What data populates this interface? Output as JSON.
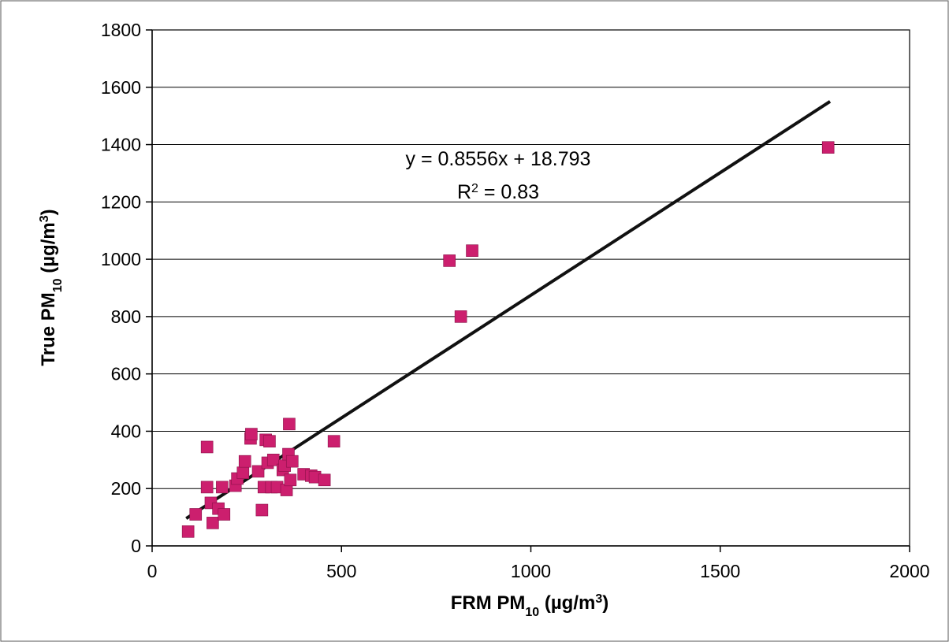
{
  "chart_data": {
    "type": "scatter",
    "xlabel": {
      "main": "FRM PM",
      "sub": "10",
      "unit_pre": " (µg/m",
      "unit_sup": "3",
      "unit_post": ")"
    },
    "ylabel": {
      "main": "True PM",
      "sub": "10",
      "unit_pre": " (µg/m",
      "unit_sup": "3",
      "unit_post": ")"
    },
    "xlim": [
      0,
      2000
    ],
    "ylim": [
      0,
      1800
    ],
    "xticks": [
      0,
      500,
      1000,
      1500,
      2000
    ],
    "yticks": [
      0,
      200,
      400,
      600,
      800,
      1000,
      1200,
      1400,
      1600,
      1800
    ],
    "grid": "horizontal",
    "marker_color": "#cc1f6e",
    "series": [
      {
        "points": [
          {
            "x": 95,
            "y": 50
          },
          {
            "x": 115,
            "y": 110
          },
          {
            "x": 145,
            "y": 345
          },
          {
            "x": 145,
            "y": 205
          },
          {
            "x": 155,
            "y": 150
          },
          {
            "x": 160,
            "y": 80
          },
          {
            "x": 175,
            "y": 130
          },
          {
            "x": 185,
            "y": 205
          },
          {
            "x": 190,
            "y": 110
          },
          {
            "x": 220,
            "y": 210
          },
          {
            "x": 225,
            "y": 235
          },
          {
            "x": 240,
            "y": 255
          },
          {
            "x": 245,
            "y": 295
          },
          {
            "x": 260,
            "y": 375
          },
          {
            "x": 262,
            "y": 390
          },
          {
            "x": 280,
            "y": 260
          },
          {
            "x": 290,
            "y": 125
          },
          {
            "x": 295,
            "y": 205
          },
          {
            "x": 300,
            "y": 370
          },
          {
            "x": 305,
            "y": 290
          },
          {
            "x": 310,
            "y": 365
          },
          {
            "x": 315,
            "y": 205
          },
          {
            "x": 320,
            "y": 300
          },
          {
            "x": 330,
            "y": 205
          },
          {
            "x": 345,
            "y": 265
          },
          {
            "x": 350,
            "y": 280
          },
          {
            "x": 355,
            "y": 195
          },
          {
            "x": 360,
            "y": 320
          },
          {
            "x": 362,
            "y": 425
          },
          {
            "x": 365,
            "y": 230
          },
          {
            "x": 370,
            "y": 295
          },
          {
            "x": 400,
            "y": 250
          },
          {
            "x": 420,
            "y": 245
          },
          {
            "x": 430,
            "y": 240
          },
          {
            "x": 455,
            "y": 230
          },
          {
            "x": 480,
            "y": 365
          },
          {
            "x": 785,
            "y": 995
          },
          {
            "x": 815,
            "y": 800
          },
          {
            "x": 845,
            "y": 1030
          },
          {
            "x": 1785,
            "y": 1390
          }
        ]
      }
    ],
    "trendline": {
      "slope": 0.8556,
      "intercept": 18.793,
      "x_range": [
        90,
        1790
      ]
    },
    "annotations": {
      "equation": "y = 0.8556x + 18.793",
      "r2_pre": "R",
      "r2_sup": "2",
      "r2_post": " = 0.83"
    }
  }
}
